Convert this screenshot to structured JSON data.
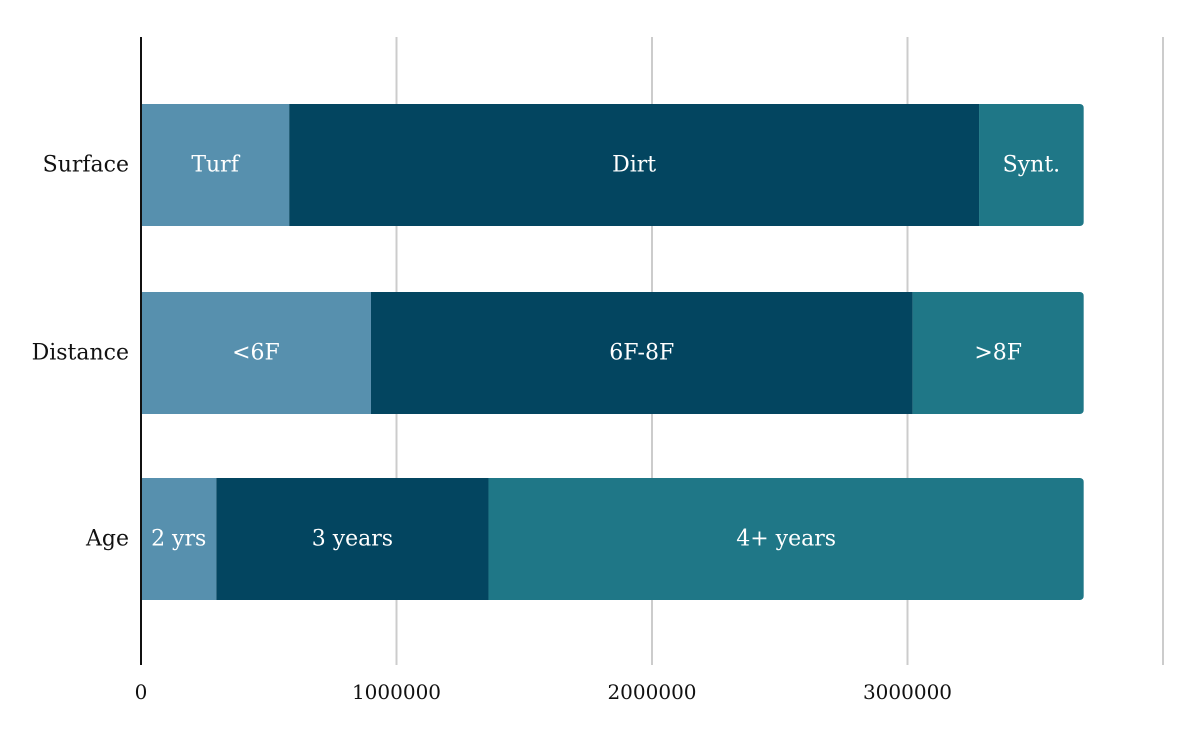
{
  "chart_data": {
    "type": "bar",
    "orientation": "horizontal",
    "stacked": true,
    "categories": [
      "Surface",
      "Distance",
      "Age"
    ],
    "series": [
      {
        "values": [
          580000,
          900000,
          295000
        ],
        "labels": [
          "Turf",
          "<6F",
          "2 yrs"
        ],
        "color": "#5790ae"
      },
      {
        "values": [
          2700000,
          2120000,
          1065000
        ],
        "labels": [
          "Dirt",
          "6F-8F",
          "3 years"
        ],
        "color": "#034560"
      },
      {
        "values": [
          410000,
          670000,
          2330000
        ],
        "labels": [
          "Synt.",
          ">8F",
          "4+ years"
        ],
        "color": "#1f7787"
      }
    ],
    "xlim": [
      0,
      4000000
    ],
    "xticks": [
      0,
      1000000,
      2000000,
      3000000
    ],
    "xtick_labels": [
      "0",
      "1000000",
      "2000000",
      "3000000"
    ],
    "grid": true
  }
}
